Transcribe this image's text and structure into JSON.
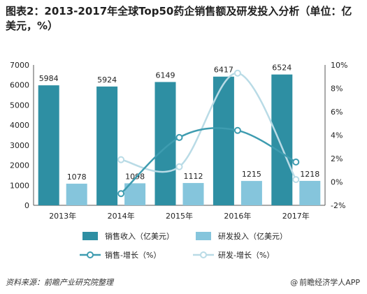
{
  "title": "图表2：2013-2017年全球Top50药企销售额及研发投入分析（单位：亿美元，%）",
  "source": "资料来源：前瞻产业研究院整理",
  "credit": "前瞻经济学人APP",
  "credit_icon": "at-sign-icon",
  "colors": {
    "sales_bar": "#2e8fa3",
    "rd_bar": "#85c5dc",
    "sales_line": "#3e9cb0",
    "rd_line": "#b9dbe6",
    "axis": "#555555"
  },
  "chart_data": {
    "type": "bar",
    "categories": [
      "2013年",
      "2014年",
      "2015年",
      "2016年",
      "2017年"
    ],
    "series": [
      {
        "name": "销售收入（亿美元）",
        "type": "bar",
        "axis": "left",
        "values": [
          5984,
          5924,
          6149,
          6417,
          6524
        ],
        "labels": [
          "5984",
          "5924",
          "6149",
          "6417",
          "6524"
        ]
      },
      {
        "name": "研发投入（亿美元）",
        "type": "bar",
        "axis": "left",
        "values": [
          1078,
          1098,
          1112,
          1215,
          1218
        ],
        "labels": [
          "1078",
          "1098",
          "1112",
          "1215",
          "1218"
        ]
      },
      {
        "name": "销售-增长（%）",
        "type": "line",
        "axis": "right",
        "values": [
          null,
          -1.0,
          3.8,
          4.4,
          1.7
        ]
      },
      {
        "name": "研发-增长（%）",
        "type": "line",
        "axis": "right",
        "values": [
          null,
          1.9,
          1.3,
          9.3,
          0.2
        ]
      }
    ],
    "y_left": {
      "ylim": [
        0,
        7000
      ],
      "ticks": [
        "0",
        "1000",
        "2000",
        "3000",
        "4000",
        "5000",
        "6000",
        "7000"
      ]
    },
    "y_right": {
      "ylim": [
        -2,
        10
      ],
      "ticks": [
        "-2%",
        "0%",
        "2%",
        "4%",
        "6%",
        "8%",
        "10%"
      ]
    },
    "legend_placement": "bottom",
    "grid": false
  }
}
